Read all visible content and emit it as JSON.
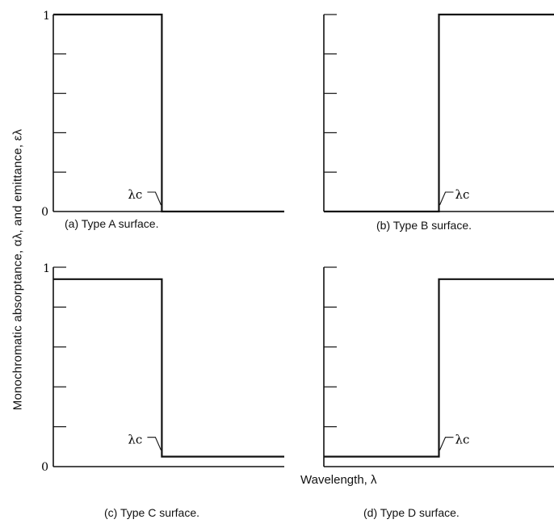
{
  "figure": {
    "ylabel": "Monochromatic absorptance, αλ, and emittance, ελ",
    "xlabel": "Wavelength, λ",
    "cutoff_label": "λc"
  },
  "chart_data": [
    {
      "type": "line",
      "caption": "(a) Type A surface.",
      "y_tick_labels": [
        "0",
        "1"
      ],
      "ylim": [
        0,
        1
      ],
      "cutoff_x": 0.47,
      "x": [
        0,
        0.47,
        0.47,
        1
      ],
      "y": [
        1.0,
        1.0,
        0.0,
        0.0
      ],
      "grid": false
    },
    {
      "type": "line",
      "caption": "(b) Type B surface.",
      "y_tick_labels": [],
      "ylim": [
        0,
        1
      ],
      "cutoff_x": 0.5,
      "x": [
        0,
        0.5,
        0.5,
        1
      ],
      "y": [
        0.0,
        0.0,
        1.0,
        1.0
      ],
      "grid": false
    },
    {
      "type": "line",
      "caption": "(c) Type C surface.",
      "y_tick_labels": [
        "0",
        "1"
      ],
      "ylim": [
        0,
        1
      ],
      "cutoff_x": 0.47,
      "x": [
        0,
        0.47,
        0.47,
        1
      ],
      "y": [
        0.94,
        0.94,
        0.05,
        0.05
      ],
      "grid": false
    },
    {
      "type": "line",
      "caption": "(d) Type D surface.",
      "y_tick_labels": [],
      "ylim": [
        0,
        1
      ],
      "cutoff_x": 0.5,
      "x": [
        0,
        0.5,
        0.5,
        1
      ],
      "y": [
        0.05,
        0.05,
        0.94,
        0.94
      ],
      "grid": false
    }
  ]
}
